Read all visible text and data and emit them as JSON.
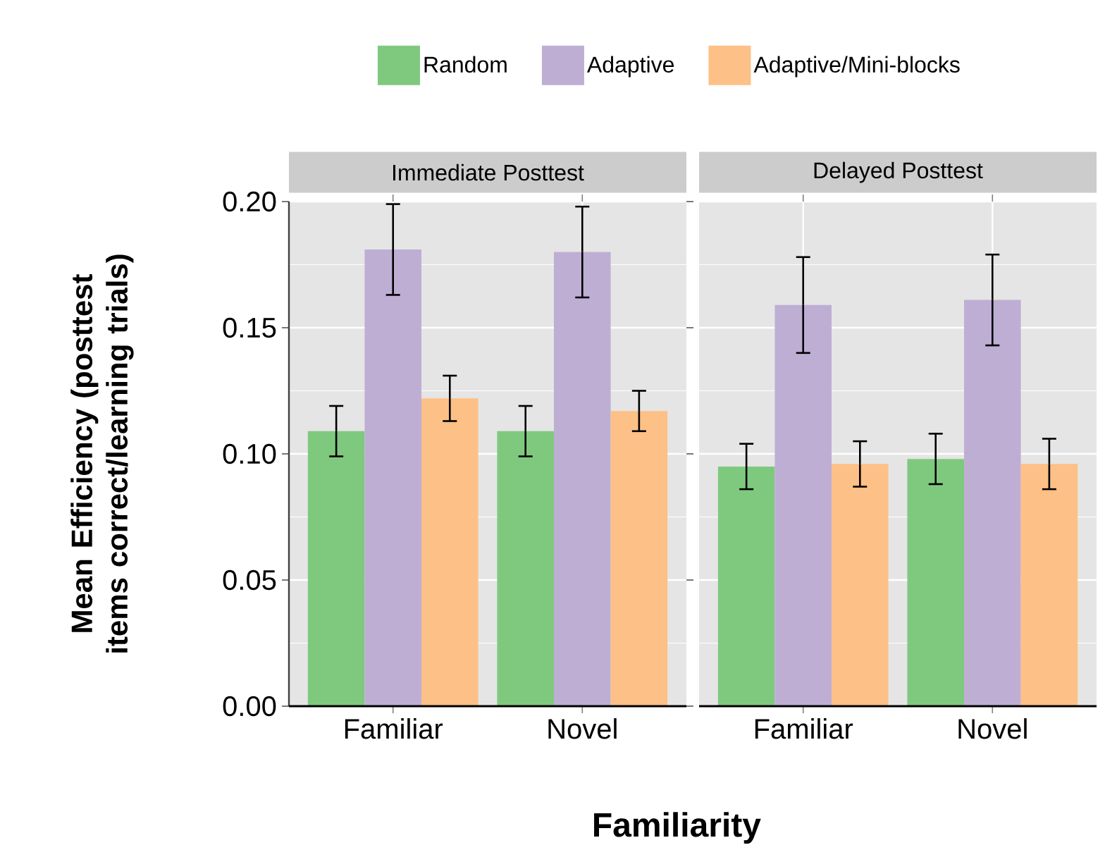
{
  "chart_data": [
    {
      "type": "bar",
      "title": "Immediate Posttest",
      "xlabel": "Familiarity",
      "ylabel": "Mean Efficiency (posttest items correct/learning trials)",
      "categories": [
        "Familiar",
        "Novel"
      ],
      "series": [
        {
          "name": "Random",
          "color": "#7fc97f",
          "values": [
            0.109,
            0.109
          ],
          "errors": [
            0.01,
            0.01
          ]
        },
        {
          "name": "Adaptive",
          "color": "#beaed4",
          "values": [
            0.181,
            0.18
          ],
          "errors": [
            0.018,
            0.018
          ]
        },
        {
          "name": "Adaptive/Mini-blocks",
          "color": "#fdc086",
          "values": [
            0.122,
            0.117
          ],
          "errors": [
            0.009,
            0.008
          ]
        }
      ],
      "ylim": [
        0,
        0.2
      ],
      "yticks": [
        {
          "value": 0,
          "label": "0.00"
        },
        {
          "value": 0.05,
          "label": "0.05"
        },
        {
          "value": 0.1,
          "label": "0.10"
        },
        {
          "value": 0.15,
          "label": "0.15"
        },
        {
          "value": 0.2,
          "label": "0.20"
        }
      ],
      "grid": true,
      "legend": "top"
    },
    {
      "type": "bar",
      "title": "Delayed Posttest",
      "categories": [
        "Familiar",
        "Novel"
      ],
      "series": [
        {
          "color": "#7fc97f",
          "values": [
            0.095,
            0.098
          ],
          "errors": [
            0.009,
            0.01
          ]
        },
        {
          "color": "#beaed4",
          "values": [
            0.159,
            0.161
          ],
          "errors": [
            0.019,
            0.018
          ]
        },
        {
          "color": "#fdc086",
          "values": [
            0.096,
            0.096
          ],
          "errors": [
            0.009,
            0.01
          ]
        }
      ],
      "ylim": [
        0,
        0.2
      ],
      "yticks": [
        0,
        0.05,
        0.1,
        0.15,
        0.2
      ],
      "grid": true,
      "tick_labels": "x"
    }
  ]
}
